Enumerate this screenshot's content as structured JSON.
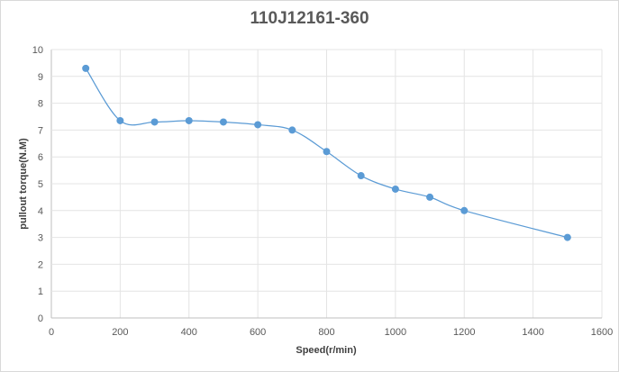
{
  "chart_data": {
    "type": "scatter",
    "title": "110J12161-360",
    "xlabel": "Speed(r/min)",
    "ylabel": "pullout torque(N.M)",
    "xlim": [
      0,
      1600
    ],
    "ylim": [
      0,
      10
    ],
    "x_ticks": [
      0,
      200,
      400,
      600,
      800,
      1000,
      1200,
      1400,
      1600
    ],
    "y_ticks": [
      0,
      1,
      2,
      3,
      4,
      5,
      6,
      7,
      8,
      9,
      10
    ],
    "grid": true,
    "smooth_lines": true,
    "series": [
      {
        "color": "#5b9bd5",
        "x": [
          100,
          200,
          300,
          400,
          500,
          600,
          700,
          800,
          900,
          1000,
          1100,
          1200,
          1500
        ],
        "y": [
          9.3,
          7.35,
          7.3,
          7.35,
          7.3,
          7.2,
          7.0,
          6.2,
          5.3,
          4.8,
          4.5,
          4.0,
          3.0
        ]
      }
    ]
  }
}
